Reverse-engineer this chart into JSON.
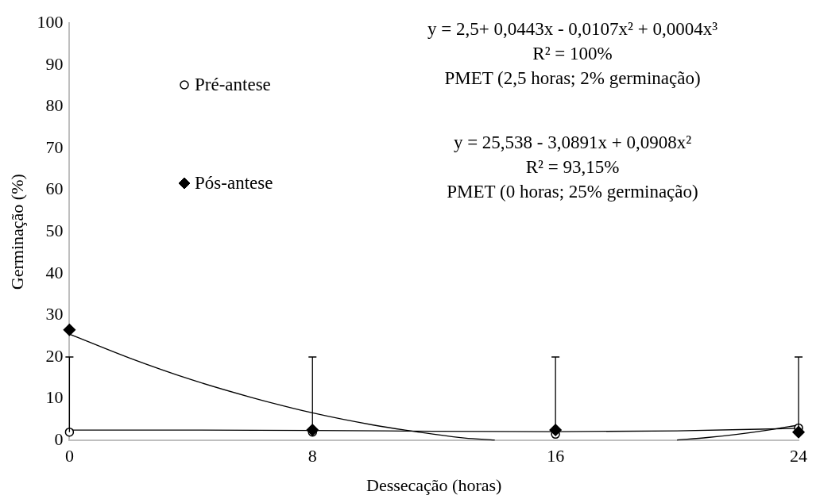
{
  "chart_data": {
    "type": "scatter",
    "xlabel": "Dessecação (horas)",
    "ylabel": "Germinação (%)",
    "xlim": [
      0,
      24
    ],
    "xticks": [
      0,
      8,
      16,
      24
    ],
    "ylim": [
      0,
      100
    ],
    "yticks": [
      0,
      10,
      20,
      30,
      40,
      50,
      60,
      70,
      80,
      90,
      100
    ],
    "grid": false,
    "legend": "top left",
    "series": [
      {
        "name": "Pré-antese",
        "type": "scatter",
        "marker": "circle",
        "color": "#000000",
        "x": [
          0,
          8,
          16,
          24
        ],
        "values": [
          2,
          2,
          1.5,
          3
        ],
        "errors": [
          [
            2,
            20
          ],
          [
            2,
            20
          ],
          [
            1.5,
            20
          ],
          [
            3,
            20
          ]
        ]
      },
      {
        "name": "Pós-antese",
        "type": "scatter",
        "marker": "diamond",
        "color": "#000000",
        "x": [
          0,
          8,
          16,
          24
        ],
        "values": [
          26.5,
          2.5,
          2.5,
          2
        ]
      },
      {
        "type": "line",
        "marker": "none",
        "color": "#000000",
        "x": [
          0,
          4,
          8,
          12,
          16,
          20,
          24
        ],
        "values": [
          2.5,
          2.5,
          2.4,
          2.2,
          2.1,
          2.3,
          2.9
        ]
      },
      {
        "type": "line",
        "marker": "none",
        "color": "#000000",
        "x": [
          0,
          2,
          4,
          6,
          8,
          10,
          12,
          13,
          14,
          16,
          18,
          20,
          21,
          22,
          23,
          24
        ],
        "values": [
          25.5,
          19.7,
          14.6,
          10.3,
          6.6,
          3.7,
          1.5,
          0.6,
          0.1,
          null,
          null,
          0.1,
          0.7,
          1.5,
          2.5,
          3.7
        ]
      }
    ],
    "annotations": [
      "y = 2,5+ 0,0443x - 0,0107x²  + 0,0004x³",
      "R² = 100%",
      "PMET (2,5 horas; 2% germinação)",
      "y = 25,538 - 3,0891x + 0,0908x²",
      "R² = 93,15%",
      "PMET (0 horas; 25% germinação)"
    ]
  }
}
